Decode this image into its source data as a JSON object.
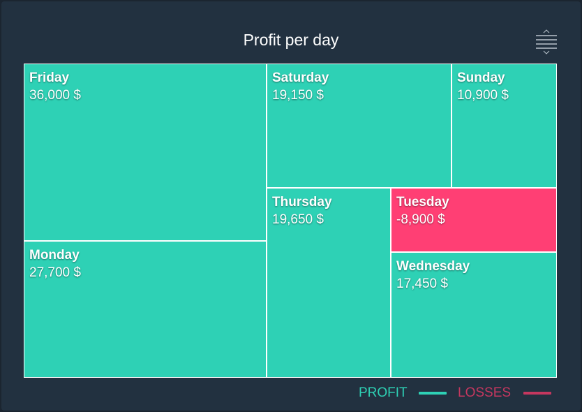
{
  "chart_data": {
    "type": "treemap",
    "title": "Profit per day",
    "value_suffix": " $",
    "items": [
      {
        "name": "Friday",
        "value": 36000,
        "label": "36,000 $",
        "category": "PROFIT"
      },
      {
        "name": "Monday",
        "value": 27700,
        "label": "27,700 $",
        "category": "PROFIT"
      },
      {
        "name": "Saturday",
        "value": 19150,
        "label": "19,150 $",
        "category": "PROFIT"
      },
      {
        "name": "Sunday",
        "value": 10900,
        "label": "10,900 $",
        "category": "PROFIT"
      },
      {
        "name": "Thursday",
        "value": 19650,
        "label": "19,650 $",
        "category": "PROFIT"
      },
      {
        "name": "Tuesday",
        "value": -8900,
        "label": "-8,900 $",
        "category": "LOSSES"
      },
      {
        "name": "Wednesday",
        "value": 17450,
        "label": "17,450 $",
        "category": "PROFIT"
      }
    ],
    "legend": [
      {
        "label": "PROFIT",
        "color": "#2ed1b5"
      },
      {
        "label": "LOSSES",
        "color": "#c5375f"
      }
    ],
    "legend_position": "bottom-right"
  },
  "colors": {
    "profit": "#2ed1b5",
    "losses": "#ff3f74",
    "background": "#223140"
  },
  "toolbar": {
    "menu_icon": "menu-lines-icon"
  }
}
